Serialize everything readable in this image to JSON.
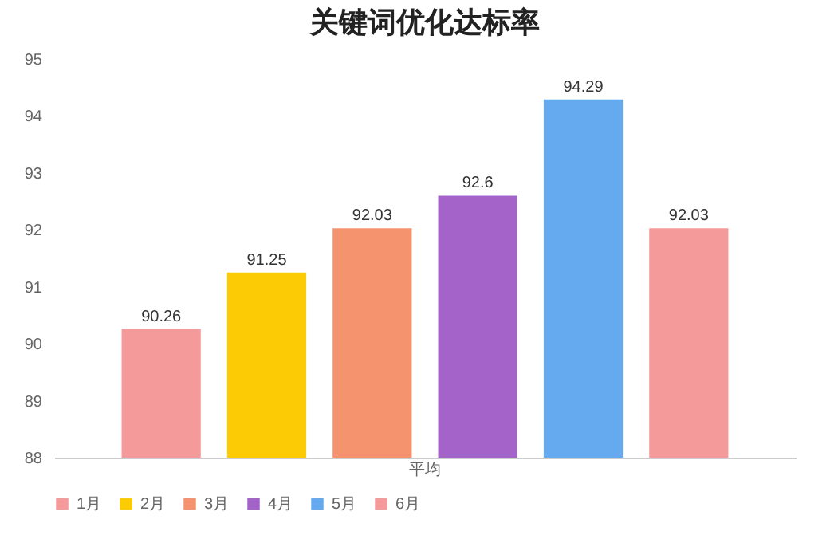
{
  "chart_data": {
    "type": "bar",
    "title": "关键词优化达标率",
    "categories": [
      "平均"
    ],
    "series": [
      {
        "name": "1月",
        "color": "#f59a9b",
        "values": [
          90.26
        ]
      },
      {
        "name": "2月",
        "color": "#fccb05",
        "values": [
          91.25
        ]
      },
      {
        "name": "3月",
        "color": "#f5936e",
        "values": [
          92.03
        ]
      },
      {
        "name": "4月",
        "color": "#a463c8",
        "values": [
          92.6
        ]
      },
      {
        "name": "5月",
        "color": "#65a9ee",
        "values": [
          94.29
        ]
      },
      {
        "name": "6月",
        "color": "#f59a9b",
        "values": [
          92.03
        ]
      }
    ],
    "ylim": [
      88,
      95
    ],
    "yticks": [
      88,
      89,
      90,
      91,
      92,
      93,
      94,
      95
    ],
    "legend": "bottom",
    "data_labels": true
  }
}
